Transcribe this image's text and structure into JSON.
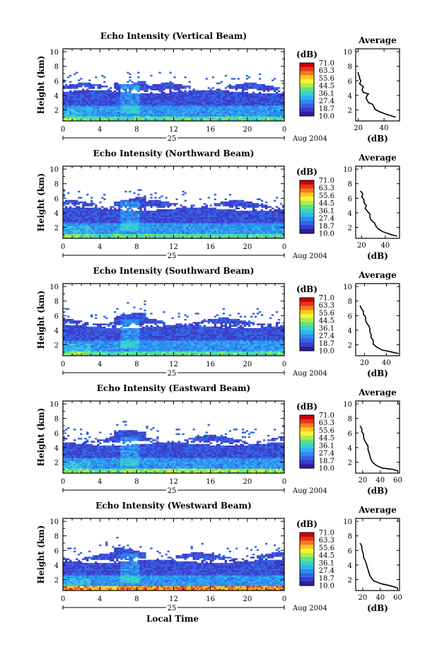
{
  "chart_data": {
    "type": "heatmap",
    "x_ticks": [
      "0",
      "4",
      "8",
      "12",
      "16",
      "20",
      "0"
    ],
    "day_label": "25",
    "date_label": "Aug 2004",
    "ylabel": "Height (km)",
    "y_ticks": [
      "2",
      "4",
      "6",
      "8",
      "10"
    ],
    "ylim": [
      0.5,
      10.4
    ],
    "xlim": [
      0,
      24
    ],
    "xlabel": "Local Time",
    "colorbar": {
      "unit": "(dB)",
      "levels": [
        "71.0",
        "63.3",
        "55.6",
        "44.5",
        "36.1",
        "27.4",
        "18.7",
        "10.0"
      ],
      "colors": [
        "#cc0000",
        "#e8331c",
        "#f47a1e",
        "#ffc81e",
        "#f5f53c",
        "#b4ec3c",
        "#5ae28c",
        "#3cd2c8",
        "#32b4f0",
        "#2d8cf0",
        "#3264e6",
        "#3c3cc8",
        "#2d1ea0"
      ]
    },
    "panels": [
      {
        "title": "Echo Intensity (Vertical Beam)",
        "beam": "vertical",
        "average": {
          "title": "Average",
          "unit": "(dB)",
          "x_ticks": [
            "20",
            "40"
          ],
          "xlim": [
            18,
            52
          ],
          "y_ticks": [
            "2",
            "4",
            "6",
            "8",
            "10"
          ],
          "profile": [
            [
              49,
              1.0
            ],
            [
              42,
              1.4
            ],
            [
              36,
              1.8
            ],
            [
              33,
              2.1
            ],
            [
              32,
              2.5
            ],
            [
              31,
              2.8
            ],
            [
              28,
              3.0
            ],
            [
              27,
              3.3
            ],
            [
              26,
              3.7
            ],
            [
              27,
              4.0
            ],
            [
              28,
              4.2
            ],
            [
              24,
              4.4
            ],
            [
              23,
              4.8
            ],
            [
              24,
              5.2
            ],
            [
              21,
              5.6
            ],
            [
              22,
              6.0
            ],
            [
              21,
              6.3
            ],
            [
              21,
              6.6
            ],
            [
              20,
              6.9
            ],
            [
              20,
              7.2
            ]
          ]
        }
      },
      {
        "title": "Echo Intensity (Northward Beam)",
        "beam": "northward",
        "average": {
          "title": "Average",
          "unit": "(dB)",
          "x_ticks": [
            "20",
            "40"
          ],
          "xlim": [
            15,
            52
          ],
          "y_ticks": [
            "2",
            "4",
            "6",
            "8",
            "10"
          ],
          "profile": [
            [
              50,
              0.8
            ],
            [
              45,
              1.0
            ],
            [
              38,
              1.4
            ],
            [
              34,
              1.8
            ],
            [
              32,
              2.2
            ],
            [
              31,
              2.6
            ],
            [
              28,
              3.0
            ],
            [
              27,
              3.4
            ],
            [
              27,
              3.8
            ],
            [
              25,
              4.2
            ],
            [
              23,
              4.6
            ],
            [
              24,
              5.0
            ],
            [
              22,
              5.4
            ],
            [
              22,
              5.8
            ],
            [
              20,
              6.2
            ],
            [
              21,
              6.6
            ],
            [
              19,
              7.0
            ]
          ]
        }
      },
      {
        "title": "Echo Intensity (Southward Beam)",
        "beam": "southward",
        "average": {
          "title": "Average",
          "unit": "(dB)",
          "x_ticks": [
            "20",
            "40"
          ],
          "xlim": [
            12,
            52
          ],
          "y_ticks": [
            "2",
            "4",
            "6",
            "8",
            "10"
          ],
          "profile": [
            [
              51,
              0.8
            ],
            [
              45,
              1.0
            ],
            [
              36,
              1.3
            ],
            [
              31,
              1.7
            ],
            [
              28,
              2.1
            ],
            [
              28,
              2.6
            ],
            [
              26,
              3.0
            ],
            [
              26,
              3.4
            ],
            [
              25,
              3.8
            ],
            [
              25,
              4.2
            ],
            [
              24,
              4.6
            ],
            [
              22,
              5.0
            ],
            [
              21,
              5.4
            ],
            [
              21,
              5.8
            ],
            [
              19,
              6.2
            ],
            [
              19,
              6.6
            ],
            [
              17,
              7.0
            ],
            [
              16,
              7.4
            ]
          ]
        }
      },
      {
        "title": "Echo Intensity (Eastward Beam)",
        "beam": "eastward",
        "average": {
          "title": "Average",
          "unit": "(dB)",
          "x_ticks": [
            "20",
            "40",
            "60"
          ],
          "xlim": [
            12,
            62
          ],
          "y_ticks": [
            "2",
            "4",
            "6",
            "8",
            "10"
          ],
          "profile": [
            [
              60,
              0.8
            ],
            [
              55,
              1.0
            ],
            [
              42,
              1.2
            ],
            [
              35,
              1.6
            ],
            [
              31,
              2.0
            ],
            [
              29,
              2.5
            ],
            [
              28,
              3.0
            ],
            [
              27,
              3.4
            ],
            [
              26,
              3.8
            ],
            [
              26,
              4.2
            ],
            [
              24,
              4.6
            ],
            [
              22,
              5.0
            ],
            [
              21,
              5.4
            ],
            [
              21,
              5.8
            ],
            [
              19,
              6.2
            ],
            [
              19,
              6.6
            ],
            [
              17,
              7.0
            ]
          ]
        }
      },
      {
        "title": "Echo Intensity (Westward Beam)",
        "beam": "westward",
        "average": {
          "title": "Average",
          "unit": "(dB)",
          "x_ticks": [
            "20",
            "40",
            "60"
          ],
          "xlim": [
            12,
            62
          ],
          "y_ticks": [
            "2",
            "4",
            "6",
            "8",
            "10"
          ],
          "profile": [
            [
              60,
              0.8
            ],
            [
              56,
              1.0
            ],
            [
              50,
              1.2
            ],
            [
              42,
              1.4
            ],
            [
              33,
              1.8
            ],
            [
              30,
              2.2
            ],
            [
              28,
              2.6
            ],
            [
              27,
              3.0
            ],
            [
              26,
              3.4
            ],
            [
              25,
              3.8
            ],
            [
              24,
              4.2
            ],
            [
              23,
              4.6
            ],
            [
              21,
              5.0
            ],
            [
              21,
              5.4
            ],
            [
              20,
              5.8
            ],
            [
              19,
              6.2
            ],
            [
              19,
              6.6
            ],
            [
              17,
              7.0
            ]
          ]
        }
      }
    ]
  }
}
